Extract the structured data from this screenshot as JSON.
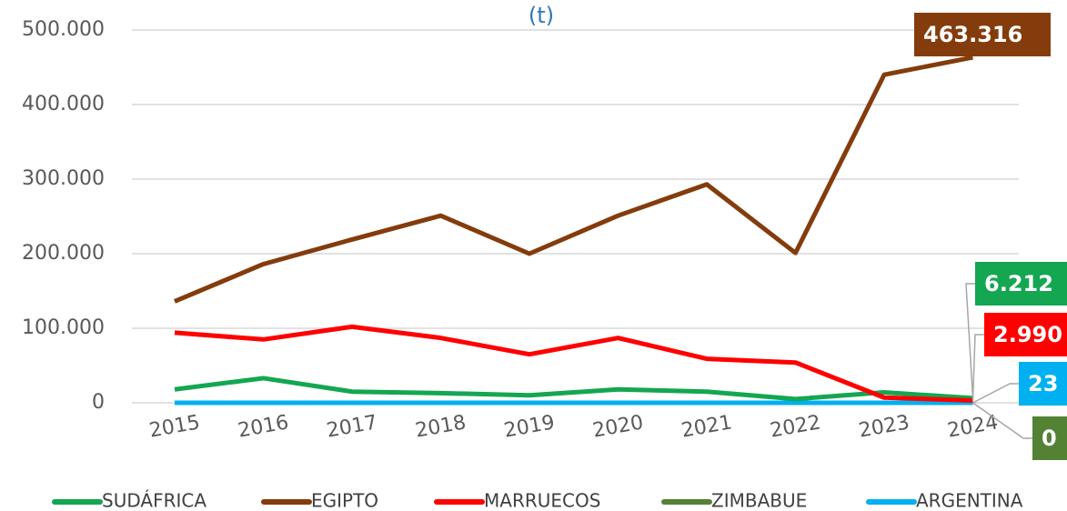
{
  "chart_data": {
    "type": "line",
    "title": "(t)",
    "x": [
      "2015",
      "2016",
      "2017",
      "2018",
      "2019",
      "2020",
      "2021",
      "2022",
      "2023",
      "2024"
    ],
    "ylim": [
      0,
      500000
    ],
    "yticks": [
      0,
      {
        "value": 100000,
        "label": "100.000"
      },
      {
        "value": 200000,
        "label": "200.000"
      },
      {
        "value": 300000,
        "label": "300.000"
      },
      {
        "value": 400000,
        "label": "400.000"
      },
      {
        "value": 500000,
        "label": "500.000"
      }
    ],
    "grid": true,
    "legend": "bottom",
    "series": [
      {
        "name": "SUDÁFRICA",
        "color": "#14a651",
        "values": [
          18000,
          33000,
          15000,
          13000,
          10000,
          18000,
          15000,
          5000,
          14000,
          6212
        ],
        "value_labels": [
          null,
          null,
          null,
          null,
          null,
          null,
          null,
          null,
          null,
          "6.212"
        ]
      },
      {
        "name": "EGIPTO",
        "color": "#843c0c",
        "values": [
          136000,
          186000,
          219000,
          251000,
          200000,
          251000,
          293000,
          201000,
          440000,
          463316
        ],
        "value_labels": [
          null,
          null,
          null,
          null,
          null,
          null,
          null,
          null,
          null,
          "463.316"
        ]
      },
      {
        "name": "MARRUECOS",
        "color": "#ff0000",
        "values": [
          94000,
          85000,
          102000,
          87000,
          65000,
          87000,
          59000,
          54000,
          7000,
          2990
        ],
        "value_labels": [
          null,
          null,
          null,
          null,
          null,
          null,
          null,
          null,
          null,
          "2.990"
        ]
      },
      {
        "name": "ZIMBABUE",
        "color": "#548235",
        "values": [
          0,
          0,
          0,
          0,
          0,
          0,
          0,
          0,
          0,
          0
        ],
        "value_labels": [
          null,
          null,
          null,
          null,
          null,
          null,
          null,
          null,
          null,
          "0"
        ]
      },
      {
        "name": "ARGENTINA",
        "color": "#00b0f0",
        "values": [
          20,
          20,
          20,
          20,
          20,
          20,
          20,
          20,
          20,
          23
        ],
        "value_labels": [
          null,
          null,
          null,
          null,
          null,
          null,
          null,
          null,
          null,
          "23"
        ]
      }
    ]
  }
}
